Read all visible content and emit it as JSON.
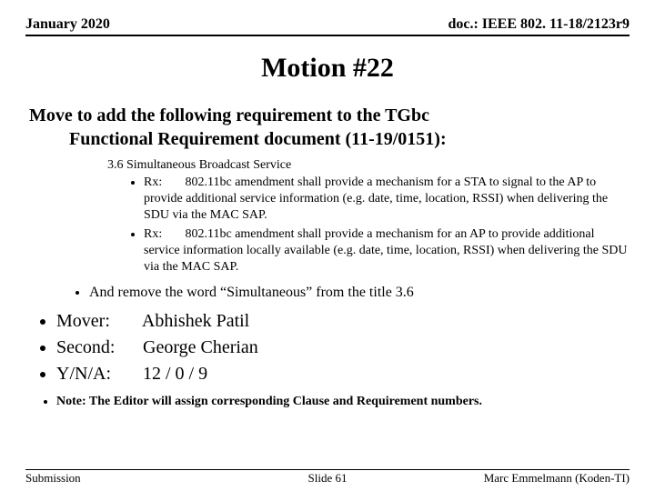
{
  "header": {
    "left": "January 2020",
    "right": "doc.: IEEE 802. 11-18/2123r9"
  },
  "title": "Motion #22",
  "motion_line1": "Move to add the following requirement to the TGbc",
  "motion_line2": "Functional Requirement document (11-19/0151):",
  "section_heading": "3.6 Simultaneous Broadcast Service",
  "sub_items": [
    {
      "label": "Rx:",
      "text": "802.11bc amendment shall provide a mechanism for a STA to signal to the AP to provide additional service information (e.g. date, time, location, RSSI) when delivering the SDU via the MAC SAP."
    },
    {
      "label": "Rx:",
      "text": "802.11bc amendment shall provide a mechanism for an AP to provide additional service information locally available (e.g. date, time, location, RSSI) when delivering the SDU via the MAC SAP."
    }
  ],
  "mid_bullet": "And remove the word “Simultaneous” from the title 3.6",
  "vote": {
    "mover_label": "Mover:",
    "mover_name": "Abhishek Patil",
    "second_label": "Second:",
    "second_name": "George Cherian",
    "yna_label": "Y/N/A:",
    "yna_value": "12 / 0 / 9"
  },
  "note": "Note: The Editor will assign corresponding Clause and Requirement numbers.",
  "footer": {
    "left": "Submission",
    "center": "Slide 61",
    "right": "Marc Emmelmann (Koden-TI)"
  }
}
